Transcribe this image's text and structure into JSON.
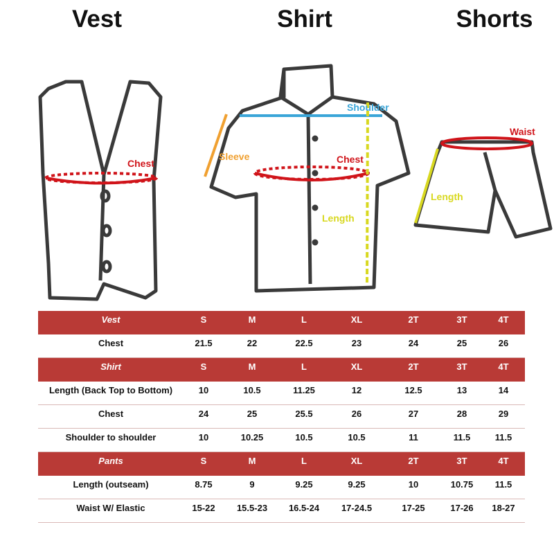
{
  "titles": {
    "vest": "Vest",
    "shirt": "Shirt",
    "shorts": "Shorts"
  },
  "labels": {
    "vest_chest": "Chest",
    "shirt_shoulder": "Shoulder",
    "shirt_sleeve": "Sleeve",
    "shirt_chest": "Chest",
    "shirt_length": "Length",
    "shorts_waist": "Waist",
    "shorts_length": "Length"
  },
  "colors": {
    "header_bg": "#b93a36",
    "chest": "#d0141a",
    "shoulder": "#3aa5d8",
    "sleeve": "#f0a030",
    "length": "#d8d820",
    "waist": "#d0141a"
  },
  "table": {
    "rows": [
      {
        "type": "header",
        "cells": [
          "Vest",
          "S",
          "M",
          "L",
          "XL",
          "2T",
          "3T",
          "4T"
        ]
      },
      {
        "type": "data",
        "cells": [
          "Chest",
          "21.5",
          "22",
          "22.5",
          "23",
          "24",
          "25",
          "26"
        ]
      },
      {
        "type": "header",
        "cells": [
          "Shirt",
          "S",
          "M",
          "L",
          "XL",
          "2T",
          "3T",
          "4T"
        ]
      },
      {
        "type": "data",
        "cells": [
          "Length (Back Top to Bottom)",
          "10",
          "10.5",
          "11.25",
          "12",
          "12.5",
          "13",
          "14"
        ]
      },
      {
        "type": "data",
        "cells": [
          "Chest",
          "24",
          "25",
          "25.5",
          "26",
          "27",
          "28",
          "29"
        ]
      },
      {
        "type": "data",
        "cells": [
          "Shoulder to shoulder",
          "10",
          "10.25",
          "10.5",
          "10.5",
          "11",
          "11.5",
          "11.5"
        ]
      },
      {
        "type": "header",
        "cells": [
          "Pants",
          "S",
          "M",
          "L",
          "XL",
          "2T",
          "3T",
          "4T"
        ]
      },
      {
        "type": "data",
        "cells": [
          "Length (outseam)",
          "8.75",
          "9",
          "9.25",
          "9.25",
          "10",
          "10.75",
          "11.5"
        ]
      },
      {
        "type": "data",
        "cells": [
          "Waist W/ Elastic",
          "15-22",
          "15.5-23",
          "16.5-24",
          "17-24.5",
          "17-25",
          "17-26",
          "18-27"
        ]
      }
    ]
  }
}
